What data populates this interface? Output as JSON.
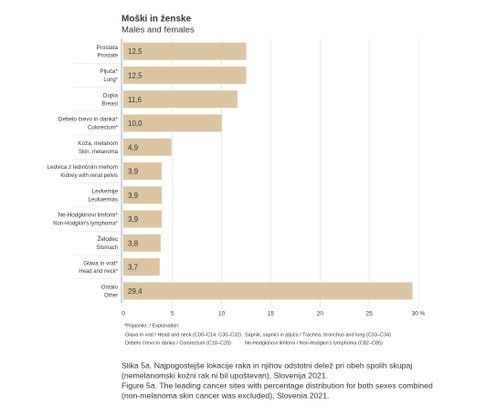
{
  "chart_data": {
    "type": "bar",
    "orientation": "horizontal",
    "title": "Moški in ženske",
    "subtitle": "Males and females",
    "categories": [
      "Prostata",
      "Pljuča*",
      "Dojka",
      "Debelo črevo in danka*",
      "Koža, melanom",
      "Ledvica z ledvičnim mehom",
      "Levkemije",
      "Ne-Hodgkinovi limfomi*",
      "Želodec",
      "Glava in vrat*",
      "Ostalo"
    ],
    "categories_en": [
      "Prostate",
      "Lung*",
      "Breast",
      "Colorectum*",
      "Skin, melanoma",
      "Kidney with renal pelvis",
      "Leukaemias",
      "Non-Hodgkin's lymphoma*",
      "Stomach",
      "Head and neck*",
      "Other"
    ],
    "values": [
      12.5,
      12.5,
      11.6,
      10.0,
      4.9,
      3.9,
      3.9,
      3.9,
      3.8,
      3.7,
      29.4
    ],
    "value_labels": [
      "12,5",
      "12,5",
      "11,6",
      "10,0",
      "4,9",
      "3,9",
      "3,9",
      "3,9",
      "3,8",
      "3,7",
      "29,4"
    ],
    "color": "#dcc5a3",
    "xlim": [
      0,
      30
    ],
    "xticks": [
      0,
      5,
      10,
      15,
      20,
      25,
      {
        "value": 30,
        "label": "30 %"
      }
    ],
    "grid": true,
    "note_title": "*Pojasnilo: / Explanation:",
    "notes": [
      "Glava in vrat / Head and neck (C00–C14, C30–C32)",
      "Debelo črevo in danka / Colorectum (C18–C20)",
      "Sapnik, sapnici in pljuča / Trachea, bronchus and lung (C33–C34)",
      "Ne-Hodgkinovi limfomi / Non-Hodgkin's lymphoma (C82–C85)"
    ],
    "caption": [
      "Slika 5a. Najpogostejše lokacije raka in njihov odstotni delež pri obeh spolih skupaj",
      "(nemelanomski kožni rak ni bil upoštevan), Slovenija 2021."
    ],
    "caption_en": [
      "Figure 5a. The leading cancer sites with percentage distribution for both sexes combined",
      "(non-melanoma skin cancer was excluded), Slovenia 2021."
    ]
  }
}
